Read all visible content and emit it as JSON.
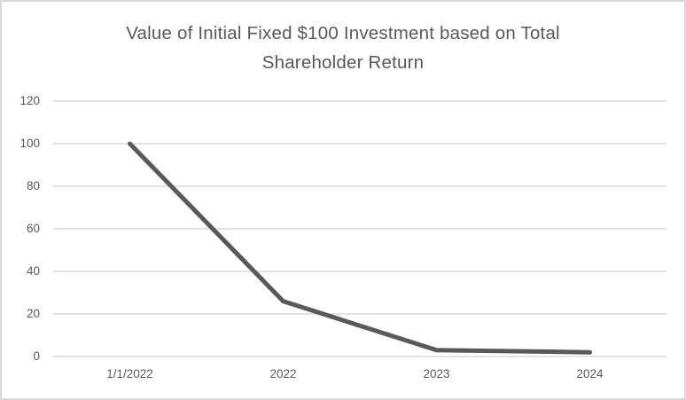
{
  "chart": {
    "title_lines": [
      "Value of Initial Fixed $100 Investment based on Total",
      "Shareholder Return"
    ]
  },
  "chart_data": {
    "type": "line",
    "title": "Value of Initial Fixed $100 Investment based on Total Shareholder Return",
    "categories": [
      "1/1/2022",
      "2022",
      "2023",
      "2024"
    ],
    "values": [
      100,
      26,
      3,
      2
    ],
    "xlabel": "",
    "ylabel": "",
    "ylim": [
      0,
      120
    ],
    "yticks": [
      0,
      20,
      40,
      60,
      80,
      100,
      120
    ],
    "grid": true,
    "legend_position": "none",
    "colors": {
      "line": "#595959",
      "gridline": "#d9d9d9",
      "axis_text": "#595959",
      "title_text": "#595959",
      "background": "#ffffff",
      "border": "#d9d9d9"
    }
  }
}
